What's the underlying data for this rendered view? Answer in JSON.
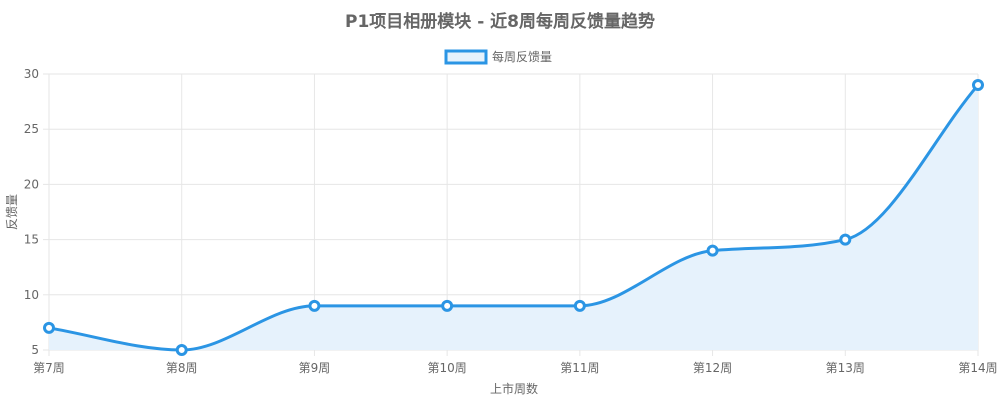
{
  "chart_data": {
    "type": "line",
    "title": "P1项目相册模块 - 近8周每周反馈量趋势",
    "xlabel": "上市周数",
    "ylabel": "反馈量",
    "categories": [
      "第7周",
      "第8周",
      "第9周",
      "第10周",
      "第11周",
      "第12周",
      "第13周",
      "第14周"
    ],
    "series": [
      {
        "name": "每周反馈量",
        "values": [
          7,
          5,
          9,
          9,
          9,
          14,
          15,
          29
        ],
        "color": "#2b95e4",
        "fill": "#e6f2fc"
      }
    ],
    "ylim": [
      5,
      30
    ],
    "yticks": [
      5,
      10,
      15,
      20,
      25,
      30
    ],
    "grid": true,
    "legend_position": "top-center"
  }
}
